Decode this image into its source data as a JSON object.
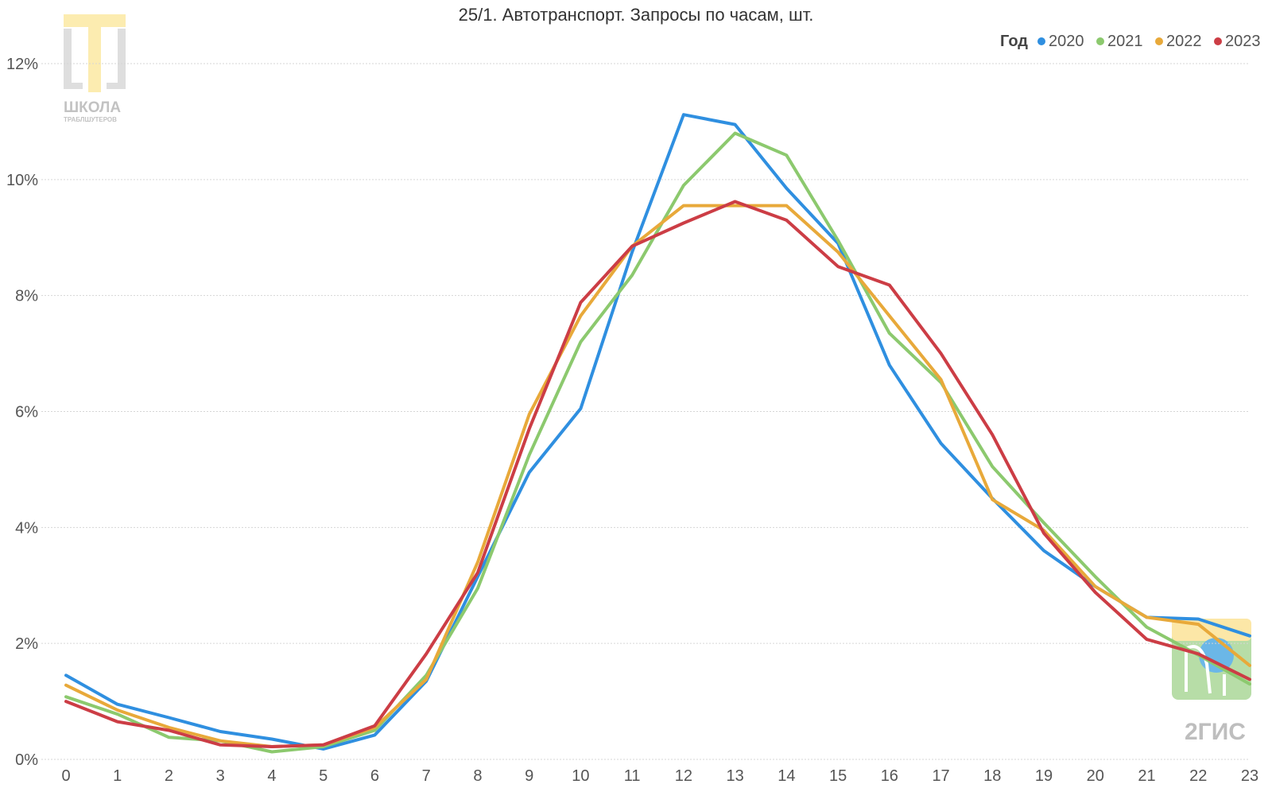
{
  "chart_data": {
    "type": "line",
    "title": "25/1. Автотранспорт. Запросы по часам, шт.",
    "legend_title": "Год",
    "legend_position": "top-right",
    "grid": true,
    "x": [
      0,
      1,
      2,
      3,
      4,
      5,
      6,
      7,
      8,
      9,
      10,
      11,
      12,
      13,
      14,
      15,
      16,
      17,
      18,
      19,
      20,
      21,
      22,
      23
    ],
    "x_tick_labels": [
      "0",
      "1",
      "2",
      "3",
      "4",
      "5",
      "6",
      "7",
      "8",
      "9",
      "10",
      "11",
      "12",
      "13",
      "14",
      "15",
      "16",
      "17",
      "18",
      "19",
      "20",
      "21",
      "22",
      "23"
    ],
    "ylim": [
      0,
      12
    ],
    "y_ticks": [
      0,
      2,
      4,
      6,
      8,
      10,
      12
    ],
    "y_tick_labels": [
      "0%",
      "2%",
      "4%",
      "6%",
      "8%",
      "10%",
      "12%"
    ],
    "series": [
      {
        "name": "2020",
        "color": "#2f8fe0",
        "values": [
          1.45,
          0.95,
          0.72,
          0.48,
          0.35,
          0.18,
          0.42,
          1.35,
          3.15,
          4.95,
          6.05,
          8.75,
          11.12,
          10.95,
          9.85,
          8.9,
          6.8,
          5.45,
          4.5,
          3.6,
          2.98,
          2.45,
          2.42,
          2.13
        ]
      },
      {
        "name": "2021",
        "color": "#8cc96e",
        "values": [
          1.08,
          0.78,
          0.38,
          0.32,
          0.13,
          0.22,
          0.5,
          1.45,
          2.95,
          5.25,
          7.2,
          8.35,
          9.9,
          10.8,
          10.42,
          8.95,
          7.35,
          6.5,
          5.05,
          4.08,
          3.15,
          2.28,
          1.8,
          1.3
        ]
      },
      {
        "name": "2022",
        "color": "#e8a93a",
        "values": [
          1.28,
          0.85,
          0.55,
          0.32,
          0.22,
          0.25,
          0.55,
          1.38,
          3.4,
          5.95,
          7.65,
          8.85,
          9.55,
          9.55,
          9.55,
          8.75,
          7.65,
          6.55,
          4.48,
          3.95,
          2.98,
          2.45,
          2.33,
          1.62
        ]
      },
      {
        "name": "2023",
        "color": "#cc3d45",
        "values": [
          1.0,
          0.65,
          0.5,
          0.25,
          0.22,
          0.25,
          0.58,
          1.82,
          3.22,
          5.7,
          7.88,
          8.85,
          9.25,
          9.62,
          9.3,
          8.5,
          8.18,
          7.0,
          5.6,
          3.9,
          2.88,
          2.07,
          1.82,
          1.38
        ]
      }
    ]
  },
  "watermarks": {
    "left_logo_text": "ШКОЛА",
    "left_logo_subtext": "ТРАБЛШУТЕРОВ",
    "right_logo_text": "2ГИС",
    "left_logo_color": "#fce9a3",
    "right_logo_color": "#9fd28a"
  },
  "colors": {
    "gridline": "#d6d6d6",
    "tick_text": "#555555",
    "title_text": "#333333"
  }
}
